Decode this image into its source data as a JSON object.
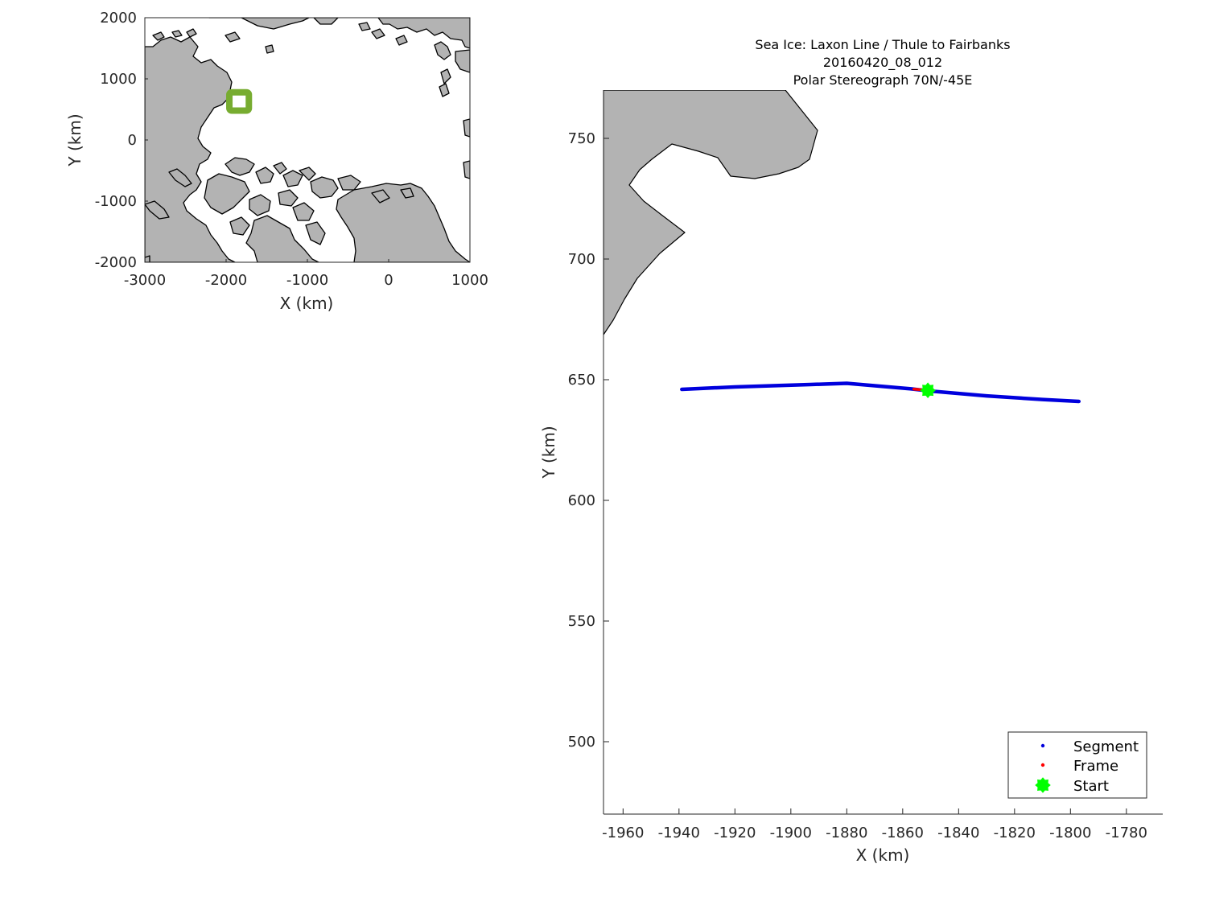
{
  "colors": {
    "land": "#b3b3b3",
    "coast": "#000000",
    "segment": "#0000dd",
    "frame": "#ff0000",
    "start": "#00ff00",
    "box": "#77ac30"
  },
  "overview_map": {
    "xlabel": "X (km)",
    "ylabel": "Y (km)",
    "xlim": [
      -3000,
      1000
    ],
    "ylim": [
      -2000,
      2000
    ],
    "xticks": [
      "-3000",
      "-2000",
      "-1000",
      "0",
      "1000"
    ],
    "yticks": [
      "2000",
      "1000",
      "0",
      "-1000",
      "-2000"
    ],
    "marker_box": {
      "x": [
        -1960,
        -1720
      ],
      "y": [
        480,
        780
      ]
    }
  },
  "detail_map": {
    "title_lines": [
      "Sea Ice: Laxon Line / Thule to Fairbanks",
      "20160420_08_012",
      "Polar Stereograph 70N/-45E"
    ],
    "xlabel": "X (km)",
    "ylabel": "Y (km)",
    "xlim": [
      -1967,
      -1767
    ],
    "ylim": [
      470,
      770
    ],
    "xticks": [
      "-1960",
      "-1940",
      "-1920",
      "-1900",
      "-1880",
      "-1860",
      "-1840",
      "-1820",
      "-1800",
      "-1780"
    ],
    "yticks": [
      "750",
      "700",
      "650",
      "600",
      "550",
      "500"
    ],
    "legend": {
      "position": "bottom-right",
      "entries": [
        "Segment",
        "Frame",
        "Start"
      ]
    }
  },
  "chart_data": [
    {
      "type": "scatter",
      "name": "overview",
      "xlim": [
        -3000,
        1000
      ],
      "ylim": [
        -2000,
        2000
      ],
      "xlabel": "X (km)",
      "ylabel": "Y (km)",
      "grid": false,
      "flight_box_center": {
        "x": -1850,
        "y": 630
      }
    },
    {
      "type": "line",
      "name": "detail",
      "xlim": [
        -1967,
        -1767
      ],
      "ylim": [
        470,
        770
      ],
      "xlabel": "X (km)",
      "ylabel": "Y (km)",
      "grid": false,
      "series": [
        {
          "name": "Segment",
          "points": [
            [
              -1939,
              646
            ],
            [
              -1920,
              647
            ],
            [
              -1893,
              648
            ],
            [
              -1880,
              648.5
            ],
            [
              -1870,
              647.5
            ],
            [
              -1857,
              646.2
            ],
            [
              -1850,
              645.3
            ],
            [
              -1830,
              643.3
            ],
            [
              -1810,
              641.8
            ],
            [
              -1797,
              641
            ]
          ]
        },
        {
          "name": "Frame",
          "points": [
            [
              -1856,
              646.1
            ],
            [
              -1851,
              645.6
            ]
          ]
        },
        {
          "name": "Start",
          "points": [
            [
              -1851,
              645.6
            ]
          ]
        }
      ],
      "land_polygon": [
        [
          -1967,
          770
        ],
        [
          -1959,
          770
        ],
        [
          -1952,
          770
        ],
        [
          -1945,
          770
        ],
        [
          -1935,
          770
        ],
        [
          -1920,
          770
        ],
        [
          -1902,
          770
        ],
        [
          -1885,
          770
        ],
        [
          -1875,
          770
        ],
        [
          -1895,
          770
        ],
        [
          -1904,
          770
        ],
        [
          -1908,
          770
        ],
        [
          -1895,
          770
        ]
      ]
    }
  ]
}
